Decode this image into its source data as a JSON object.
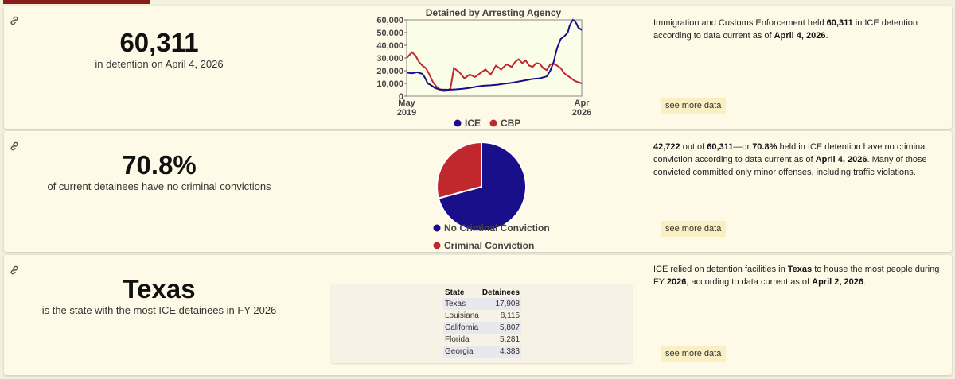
{
  "colors": {
    "ice": "#1a0f8a",
    "cbp": "#c0282e",
    "no_conv": "#1a0f8a",
    "conv": "#c0282e"
  },
  "card1": {
    "stat": "60,311",
    "caption": "in detention on April 4, 2026",
    "desc_pre": "Immigration and Customs Enforcement held ",
    "desc_num": "60,311",
    "desc_mid": " in ICE detention according to data current as of ",
    "desc_date": "April 4, 2026",
    "desc_end": ".",
    "more": "see more data"
  },
  "card2": {
    "stat": "70.8%",
    "caption": "of current detainees have no criminal convictions",
    "desc_num1": "42,722",
    "desc_t1": " out of ",
    "desc_num2": "60,311",
    "desc_t2": "—or ",
    "desc_pct": "70.8%",
    "desc_t3": " held in ICE detention have no criminal conviction according to data current as of ",
    "desc_date": "April 4, 2026",
    "desc_t4": ". Many of those convicted committed only minor offenses, including traffic violations.",
    "more": "see more data",
    "legend_no": "No Criminal Conviction",
    "legend_conv": "Criminal Conviction"
  },
  "card3": {
    "stat": "Texas",
    "caption": "is the state with the most ICE detainees in FY 2026",
    "desc_t1": "ICE relied on detention facilities in ",
    "desc_state": "Texas",
    "desc_t2": " to house the most people during FY ",
    "desc_fy": "2026",
    "desc_t3": ", according to data current as of ",
    "desc_date": "April 2, 2026",
    "desc_t4": ".",
    "more": "see more data",
    "table": {
      "headers": [
        "State",
        "Detainees"
      ],
      "rows": [
        [
          "Texas",
          "17,908"
        ],
        [
          "Louisiana",
          "8,115"
        ],
        [
          "California",
          "5,807"
        ],
        [
          "Florida",
          "5,281"
        ],
        [
          "Georgia",
          "4,383"
        ]
      ]
    }
  },
  "chart_data": [
    {
      "type": "line",
      "title": "Detained by Arresting Agency",
      "xlabel": "",
      "ylabel": "",
      "x_tick_labels": [
        [
          "May",
          "2019"
        ],
        [
          "Apr",
          "2026"
        ]
      ],
      "y_tick_labels": [
        "0",
        "10,000",
        "20,000",
        "30,000",
        "40,000",
        "50,000",
        "60,000"
      ],
      "ylim": [
        0,
        60000
      ],
      "xlim": [
        0,
        100
      ],
      "legend": [
        "ICE",
        "CBP"
      ],
      "series": [
        {
          "name": "ICE",
          "x": [
            0,
            3,
            6,
            9,
            10,
            11,
            12,
            14,
            16,
            18,
            20,
            24,
            28,
            32,
            36,
            40,
            44,
            48,
            52,
            56,
            60,
            64,
            68,
            72,
            76,
            80,
            82,
            84,
            85,
            86,
            88,
            90,
            92,
            93,
            94,
            95,
            96,
            97,
            98,
            100
          ],
          "values": [
            18500,
            18000,
            18800,
            17500,
            15500,
            13000,
            10000,
            8500,
            6500,
            5500,
            5200,
            5000,
            5300,
            5800,
            6500,
            7500,
            8200,
            8500,
            9000,
            9800,
            10500,
            11500,
            12500,
            13500,
            14000,
            15500,
            20000,
            27000,
            33000,
            38000,
            45000,
            47000,
            50000,
            55000,
            58000,
            60000,
            59000,
            57000,
            54000,
            52000
          ]
        },
        {
          "name": "CBP",
          "x": [
            0,
            2,
            3,
            5,
            7,
            9,
            11,
            13,
            15,
            17,
            19,
            21,
            23,
            25,
            27,
            30,
            33,
            36,
            39,
            42,
            45,
            48,
            51,
            54,
            57,
            60,
            62,
            64,
            66,
            68,
            70,
            72,
            74,
            76,
            78,
            80,
            82,
            84,
            86,
            88,
            90,
            92,
            94,
            96,
            98,
            100
          ],
          "values": [
            30000,
            33000,
            34500,
            32000,
            27000,
            24000,
            22000,
            17000,
            11000,
            7500,
            5000,
            4000,
            4200,
            6000,
            22000,
            19000,
            14000,
            17000,
            15000,
            18000,
            21000,
            17000,
            24000,
            21000,
            25000,
            23000,
            27000,
            29000,
            26000,
            28000,
            24000,
            23000,
            26000,
            25500,
            22000,
            20500,
            25000,
            25500,
            24000,
            22000,
            18000,
            16000,
            14000,
            12000,
            11000,
            10000
          ]
        }
      ]
    },
    {
      "type": "pie",
      "labels": [
        "No Criminal Conviction",
        "Criminal Conviction"
      ],
      "values": [
        70.8,
        29.2
      ]
    }
  ]
}
